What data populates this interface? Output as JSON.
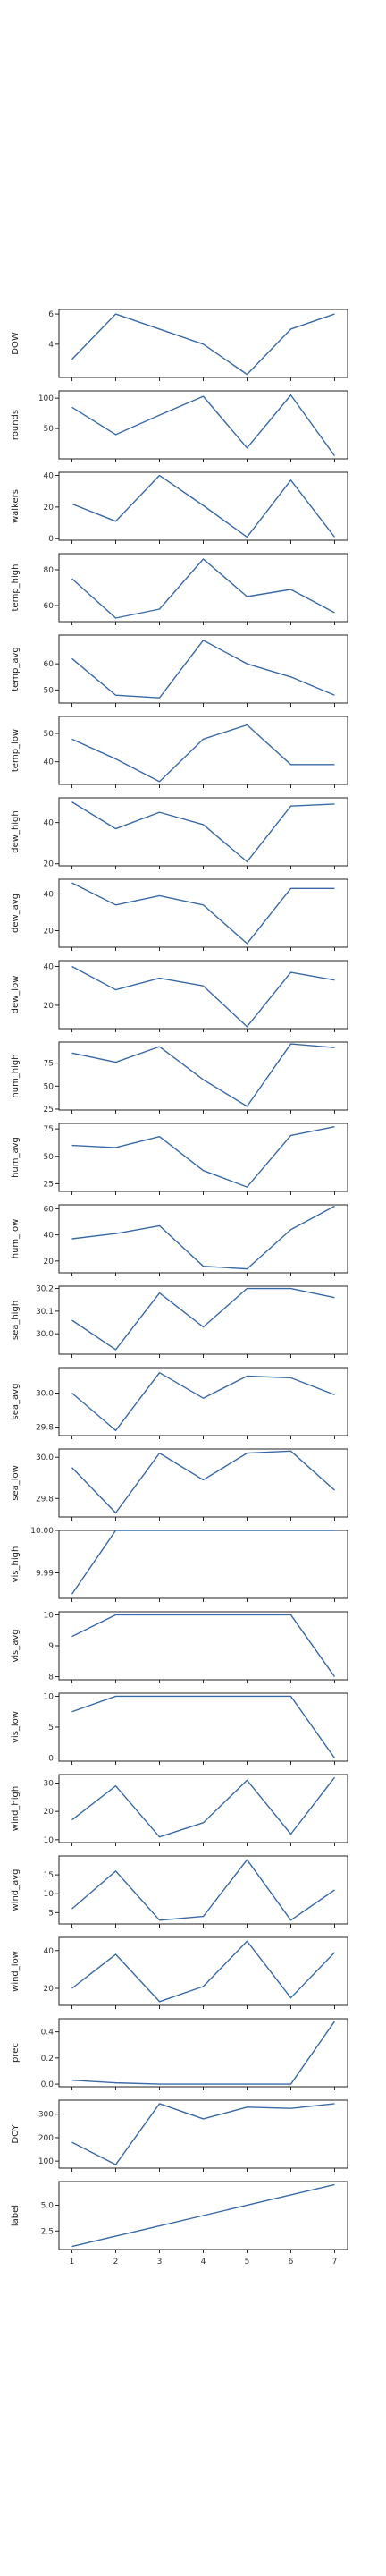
{
  "colors": {
    "line": "#3a6aa6",
    "frame": "#222222"
  },
  "chart_data": {
    "type": "line",
    "layout": "stacked-subplots",
    "sharex": true,
    "x": [
      1,
      2,
      3,
      4,
      5,
      6,
      7
    ],
    "x_ticks": [
      "1",
      "2",
      "3",
      "4",
      "5",
      "6",
      "7"
    ],
    "grid": false,
    "panels": [
      {
        "ylabel": "DOW",
        "values": [
          3,
          6,
          5,
          4,
          2,
          5,
          6
        ],
        "yticks": [
          "4",
          "6"
        ],
        "ylim": [
          1.8,
          6.3
        ]
      },
      {
        "ylabel": "rounds",
        "values": [
          85,
          40,
          72,
          103,
          18,
          105,
          5
        ],
        "yticks": [
          "50",
          "100"
        ],
        "ylim": [
          0,
          112
        ]
      },
      {
        "ylabel": "walkers",
        "values": [
          22,
          11,
          40,
          21,
          1,
          37,
          1
        ],
        "yticks": [
          "0",
          "20",
          "40"
        ],
        "ylim": [
          -1,
          42
        ]
      },
      {
        "ylabel": "temp_high",
        "values": [
          75,
          53,
          58,
          86,
          65,
          69,
          56
        ],
        "yticks": [
          "60",
          "80"
        ],
        "ylim": [
          51,
          89
        ]
      },
      {
        "ylabel": "temp_avg",
        "values": [
          62,
          48,
          47,
          69,
          60,
          55,
          48
        ],
        "yticks": [
          "50",
          "60"
        ],
        "ylim": [
          45,
          71
        ]
      },
      {
        "ylabel": "temp_low",
        "values": [
          48,
          41,
          33,
          48,
          53,
          39,
          39
        ],
        "yticks": [
          "40",
          "50"
        ],
        "ylim": [
          32,
          56
        ]
      },
      {
        "ylabel": "dew_high",
        "values": [
          50,
          37,
          45,
          39,
          21,
          48,
          49
        ],
        "yticks": [
          "20",
          "40"
        ],
        "ylim": [
          19,
          52
        ]
      },
      {
        "ylabel": "dew_avg",
        "values": [
          46,
          34,
          39,
          34,
          13,
          43,
          43
        ],
        "yticks": [
          "20",
          "40"
        ],
        "ylim": [
          11,
          48
        ]
      },
      {
        "ylabel": "dew_low",
        "values": [
          40,
          28,
          34,
          30,
          9,
          37,
          33
        ],
        "yticks": [
          "20",
          "40"
        ],
        "ylim": [
          8,
          43
        ]
      },
      {
        "ylabel": "hum_high",
        "values": [
          86,
          76,
          93,
          57,
          28,
          96,
          92
        ],
        "yticks": [
          "25",
          "50",
          "75"
        ],
        "ylim": [
          24,
          98
        ]
      },
      {
        "ylabel": "hum_avg",
        "values": [
          60,
          58,
          68,
          37,
          22,
          69,
          77
        ],
        "yticks": [
          "25",
          "50",
          "75"
        ],
        "ylim": [
          18,
          80
        ]
      },
      {
        "ylabel": "hum_low",
        "values": [
          37,
          41,
          47,
          16,
          14,
          44,
          62
        ],
        "yticks": [
          "20",
          "40",
          "60"
        ],
        "ylim": [
          11,
          63
        ]
      },
      {
        "ylabel": "sea_high",
        "values": [
          30.06,
          29.93,
          30.18,
          30.03,
          30.2,
          30.2,
          30.16
        ],
        "yticks": [
          "30.0",
          "30.1",
          "30.2"
        ],
        "ylim": [
          29.91,
          30.21
        ]
      },
      {
        "ylabel": "sea_avg",
        "values": [
          30.0,
          29.78,
          30.12,
          29.97,
          30.1,
          30.09,
          29.99
        ],
        "yticks": [
          "29.8",
          "30.0"
        ],
        "ylim": [
          29.75,
          30.15
        ]
      },
      {
        "ylabel": "sea_low",
        "values": [
          29.95,
          29.73,
          30.02,
          29.89,
          30.02,
          30.03,
          29.84
        ],
        "yticks": [
          "29.8",
          "30.0"
        ],
        "ylim": [
          29.71,
          30.04
        ]
      },
      {
        "ylabel": "vis_high",
        "values": [
          9.985,
          10.0,
          10.0,
          10.0,
          10.0,
          10.0,
          10.0
        ],
        "yticks": [
          "9.99",
          "10.00"
        ],
        "ylim": [
          9.984,
          10.0
        ]
      },
      {
        "ylabel": "vis_avg",
        "values": [
          9.3,
          10.0,
          10.0,
          10.0,
          10.0,
          10.0,
          8.0
        ],
        "yticks": [
          "8",
          "9",
          "10"
        ],
        "ylim": [
          7.9,
          10.1
        ]
      },
      {
        "ylabel": "vis_low",
        "values": [
          7.5,
          10,
          10,
          10,
          10,
          10,
          0
        ],
        "yticks": [
          "0",
          "5",
          "10"
        ],
        "ylim": [
          -0.5,
          10.5
        ]
      },
      {
        "ylabel": "wind_high",
        "values": [
          17,
          29,
          11,
          16,
          31,
          12,
          32
        ],
        "yticks": [
          "10",
          "20",
          "30"
        ],
        "ylim": [
          9,
          33
        ]
      },
      {
        "ylabel": "wind_avg",
        "values": [
          6,
          16,
          3,
          4,
          19,
          3,
          11
        ],
        "yticks": [
          "5",
          "10",
          "15"
        ],
        "ylim": [
          2,
          20
        ]
      },
      {
        "ylabel": "wind_low",
        "values": [
          20,
          38,
          13,
          21,
          45,
          15,
          39
        ],
        "yticks": [
          "20",
          "40"
        ],
        "ylim": [
          11,
          47
        ]
      },
      {
        "ylabel": "prec",
        "values": [
          0.03,
          0.01,
          0.0,
          0.0,
          0.0,
          0.0,
          0.48
        ],
        "yticks": [
          "0.0",
          "0.2",
          "0.4"
        ],
        "ylim": [
          -0.02,
          0.5
        ]
      },
      {
        "ylabel": "DOY",
        "values": [
          180,
          85,
          345,
          280,
          330,
          325,
          345
        ],
        "yticks": [
          "100",
          "200",
          "300"
        ],
        "ylim": [
          70,
          360
        ]
      },
      {
        "ylabel": "label",
        "values": [
          1,
          2,
          3,
          4,
          5,
          6,
          7
        ],
        "yticks": [
          "2.5",
          "5.0"
        ],
        "ylim": [
          0.7,
          7.3
        ]
      }
    ]
  }
}
